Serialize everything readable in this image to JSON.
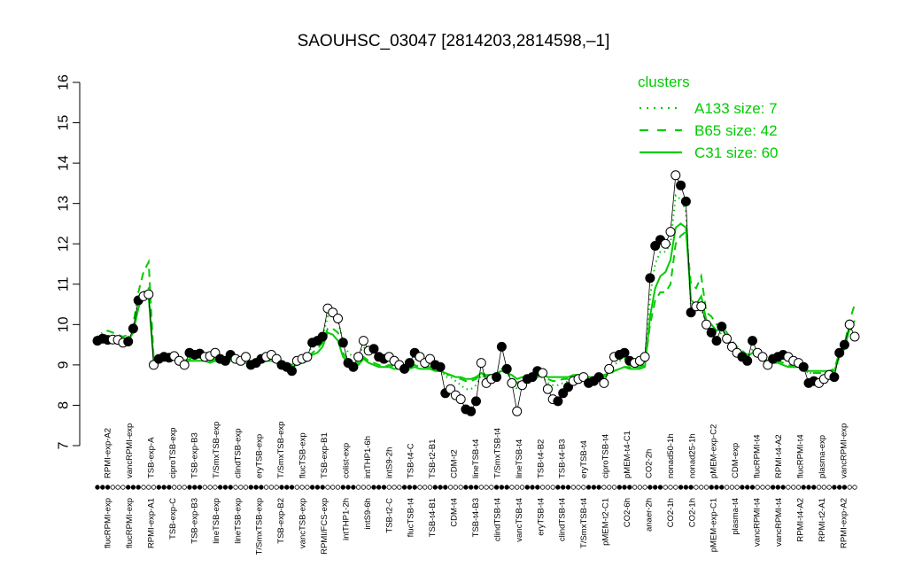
{
  "chart_data": {
    "type": "line",
    "title": "SAOUHSC_03047 [2814203,2814598,–1]",
    "xlabel": "",
    "ylabel": "",
    "ylim": [
      7,
      16
    ],
    "yticks": [
      7,
      8,
      9,
      10,
      11,
      12,
      13,
      14,
      15,
      16
    ],
    "grid": false,
    "legend": {
      "title": "clusters",
      "placement": "top-right",
      "entries": [
        {
          "label": "A133 size: 7",
          "style": "dotted"
        },
        {
          "label": "B65 size: 42",
          "style": "dashed"
        },
        {
          "label": "C31 size: 60",
          "style": "solid"
        }
      ]
    },
    "top_labels": [
      "RPMI-exp-A2",
      "vancRPMI-exp",
      "TSB-exp-A",
      "ciproTSB-exp",
      "TSB-exp-B3",
      "T/SmxTSB-exp",
      "clindTSB-exp",
      "eryTSB-exp",
      "T/SmxTSB-exp",
      "flucTSB-exp",
      "TSB-exp-B1",
      "colist-exp",
      "intTHP1-6h",
      "intS9-2h",
      "TSB-t4-C",
      "TSB-t2-B1",
      "CDM-t2",
      "lineTSB-t4",
      "T/SmxTSB-t4",
      "lineTSB-t4",
      "TSB-t4-B2",
      "TSB-t4-B3",
      "eryTSB-t4",
      "ciproTSB-t4",
      "pMEM-t4-C1",
      "CO2-2h",
      "nonad50-1h",
      "nonad25-1h",
      "pMEM-exp-C2",
      "CDM-exp",
      "flucRPMI-t4",
      "RPMI-t4-A2",
      "flucRPMI-t4",
      "plasma-exp",
      "vancRPMI-exp"
    ],
    "bottom_labels": [
      "flucRPMI-exp",
      "flucRPMI-exp",
      "RPMI-exp-A1",
      "TSB-exp-C",
      "TSB-exp-B3",
      "lineTSB-exp",
      "lineTSB-exp",
      "T/SmxTSB-exp",
      "TSB-exp-B2",
      "vancTSB-exp",
      "RPMI/FCS-exp",
      "intTHP1-2h",
      "intS9-6h",
      "TSB-t2-C",
      "flucTSB-t4",
      "TSB-t4-B1",
      "CDM-t4",
      "TSB-t4-B3",
      "clindTSB-t4",
      "vancTSB-t4",
      "eryTSB-t4",
      "clindTSB-t4",
      "T/SmxTSB-t4",
      "pMEM-t2-C1",
      "CO2-6h",
      "anaer-2h",
      "CO2-1h",
      "CO2-1h",
      "pMEM-exp-C1",
      "plasma-t4",
      "vancRPMI-t4",
      "vancRPMI-t4",
      "RPMI-t4-A2",
      "RPMI-t2-A1",
      "RPMI-exp-A2"
    ],
    "x": [
      1,
      2,
      3,
      4,
      5,
      6,
      7,
      8,
      9,
      10,
      11,
      12,
      13,
      14,
      15,
      16,
      17,
      18,
      19,
      20,
      21,
      22,
      23,
      24,
      25,
      26,
      27,
      28,
      29,
      30,
      31,
      32,
      33,
      34,
      35,
      36,
      37,
      38,
      39,
      40,
      41,
      42,
      43,
      44,
      45,
      46,
      47,
      48,
      49,
      50,
      51,
      52,
      53,
      54,
      55,
      56,
      57,
      58,
      59,
      60,
      61,
      62,
      63,
      64,
      65,
      66,
      67,
      68,
      69,
      70,
      71,
      72,
      73,
      74,
      75,
      76,
      77,
      78,
      79,
      80,
      81,
      82,
      83,
      84,
      85,
      86,
      87,
      88,
      89,
      90,
      91,
      92,
      93,
      94,
      95,
      96,
      97,
      98,
      99,
      100,
      101,
      102,
      103,
      104,
      105,
      106,
      107,
      108,
      109,
      110,
      111,
      112,
      113,
      114,
      115,
      116,
      117,
      118,
      119,
      120,
      121,
      122,
      123,
      124,
      125,
      126,
      127,
      128,
      129,
      130,
      131,
      132,
      133,
      134,
      135,
      136,
      137,
      138,
      139,
      140,
      141,
      142,
      143,
      144,
      145,
      146,
      147,
      148,
      149
    ],
    "points": [
      9.6,
      9.65,
      9.62,
      9.63,
      9.62,
      9.55,
      9.58,
      9.9,
      10.6,
      10.7,
      10.75,
      9.0,
      9.15,
      9.2,
      9.18,
      9.22,
      9.1,
      9.0,
      9.3,
      9.25,
      9.28,
      9.2,
      9.22,
      9.3,
      9.15,
      9.1,
      9.25,
      9.15,
      9.1,
      9.2,
      9.0,
      9.05,
      9.15,
      9.2,
      9.25,
      9.15,
      9.0,
      8.95,
      8.85,
      9.1,
      9.15,
      9.2,
      9.55,
      9.6,
      9.7,
      10.4,
      10.3,
      10.15,
      9.55,
      9.05,
      8.95,
      9.2,
      9.6,
      9.35,
      9.4,
      9.2,
      9.15,
      9.2,
      9.1,
      9.0,
      8.9,
      9.05,
      9.3,
      9.2,
      9.05,
      9.15,
      9.0,
      8.95,
      8.3,
      8.4,
      8.25,
      8.15,
      7.9,
      7.85,
      8.1,
      9.05,
      8.55,
      8.65,
      8.7,
      9.45,
      8.9,
      8.55,
      7.85,
      8.5,
      8.65,
      8.7,
      8.85,
      8.8,
      8.4,
      8.15,
      8.1,
      8.3,
      8.45,
      8.6,
      8.65,
      8.7,
      8.55,
      8.6,
      8.7,
      8.55,
      8.9,
      9.2,
      9.25,
      9.3,
      9.1,
      9.05,
      9.1,
      9.2,
      11.15,
      11.95,
      12.1,
      12.0,
      12.3,
      13.7,
      13.45,
      13.05,
      10.3,
      10.45,
      10.45,
      10.0,
      9.8,
      9.6,
      9.95,
      9.65,
      9.45,
      9.3,
      9.2,
      9.1,
      9.6,
      9.3,
      9.2,
      9.0,
      9.15,
      9.2,
      9.25,
      9.2,
      9.1,
      9.05,
      8.95,
      8.55,
      8.6,
      8.55,
      8.65,
      8.75,
      8.7,
      9.3,
      9.5,
      10.0,
      9.7
    ],
    "series": [
      {
        "name": "A133 size: 7",
        "style": "dotted",
        "values": [
          9.7,
          9.8,
          9.7,
          9.7,
          9.7,
          9.65,
          9.7,
          9.9,
          10.6,
          10.8,
          10.9,
          9.1,
          9.15,
          9.2,
          9.15,
          9.2,
          9.15,
          9.1,
          9.25,
          9.25,
          9.25,
          9.2,
          9.2,
          9.25,
          9.2,
          9.15,
          9.2,
          9.15,
          9.15,
          9.2,
          9.1,
          9.1,
          9.15,
          9.2,
          9.2,
          9.15,
          9.1,
          9.05,
          9.0,
          9.1,
          9.15,
          9.2,
          9.5,
          9.6,
          9.7,
          10.2,
          10.2,
          10.1,
          9.6,
          9.3,
          9.2,
          9.25,
          9.45,
          9.3,
          9.3,
          9.2,
          9.15,
          9.15,
          9.1,
          9.05,
          9.0,
          9.05,
          9.15,
          9.1,
          9.05,
          9.05,
          9.0,
          8.95,
          8.7,
          8.7,
          8.6,
          8.5,
          8.4,
          8.4,
          8.5,
          8.75,
          8.65,
          8.65,
          8.7,
          8.9,
          8.8,
          8.6,
          8.4,
          8.55,
          8.6,
          8.65,
          8.7,
          8.7,
          8.55,
          8.5,
          8.5,
          8.55,
          8.6,
          8.6,
          8.65,
          8.65,
          8.6,
          8.6,
          8.65,
          8.65,
          8.8,
          9.0,
          9.1,
          9.15,
          9.1,
          9.05,
          9.05,
          9.1,
          10.7,
          11.5,
          11.8,
          11.8,
          12.0,
          13.2,
          13.1,
          12.8,
          10.4,
          10.4,
          10.4,
          10.0,
          9.9,
          9.7,
          9.8,
          9.6,
          9.45,
          9.35,
          9.25,
          9.15,
          9.4,
          9.25,
          9.2,
          9.1,
          9.15,
          9.15,
          9.15,
          9.1,
          9.05,
          9.0,
          8.95,
          8.8,
          8.8,
          8.8,
          8.8,
          8.8,
          8.8,
          9.2,
          9.4,
          9.9,
          9.8
        ]
      },
      {
        "name": "B65 size: 42",
        "style": "dashed",
        "values": [
          9.6,
          9.75,
          9.85,
          9.8,
          9.75,
          9.7,
          9.75,
          10.0,
          10.8,
          11.3,
          11.55,
          9.2,
          9.2,
          9.2,
          9.15,
          9.2,
          9.15,
          9.1,
          9.15,
          9.15,
          9.2,
          9.15,
          9.1,
          9.15,
          9.1,
          9.1,
          9.15,
          9.15,
          9.1,
          9.1,
          9.05,
          9.1,
          9.1,
          9.15,
          9.15,
          9.1,
          9.05,
          9.05,
          9.0,
          9.05,
          9.1,
          9.15,
          9.3,
          9.4,
          9.55,
          9.9,
          9.9,
          9.8,
          9.3,
          9.1,
          9.05,
          9.05,
          9.2,
          9.1,
          9.05,
          9.0,
          8.95,
          9.0,
          8.95,
          8.95,
          8.9,
          8.95,
          9.0,
          8.95,
          8.95,
          8.95,
          8.9,
          8.9,
          8.75,
          8.75,
          8.7,
          8.65,
          8.6,
          8.6,
          8.65,
          8.8,
          8.7,
          8.75,
          8.75,
          8.9,
          8.8,
          8.7,
          8.55,
          8.65,
          8.65,
          8.7,
          8.7,
          8.75,
          8.65,
          8.6,
          8.6,
          8.65,
          8.65,
          8.7,
          8.7,
          8.7,
          8.65,
          8.65,
          8.7,
          8.7,
          8.75,
          8.85,
          8.9,
          8.95,
          8.95,
          8.95,
          8.95,
          9.0,
          10.0,
          10.6,
          10.8,
          10.8,
          11.0,
          12.0,
          12.2,
          12.3,
          11.0,
          10.9,
          11.2,
          10.3,
          10.2,
          10.0,
          10.0,
          9.8,
          9.6,
          9.45,
          9.35,
          9.25,
          9.35,
          9.25,
          9.15,
          9.1,
          9.1,
          9.1,
          9.05,
          9.0,
          8.95,
          8.95,
          8.9,
          8.8,
          8.8,
          8.8,
          8.8,
          8.85,
          8.9,
          9.3,
          9.5,
          10.1,
          10.5
        ]
      },
      {
        "name": "C31 size: 60",
        "style": "solid",
        "values": [
          9.5,
          9.6,
          9.6,
          9.6,
          9.6,
          9.55,
          9.6,
          9.8,
          10.4,
          10.8,
          10.7,
          9.1,
          9.1,
          9.15,
          9.1,
          9.15,
          9.1,
          9.05,
          9.1,
          9.1,
          9.1,
          9.1,
          9.05,
          9.1,
          9.05,
          9.05,
          9.1,
          9.1,
          9.05,
          9.05,
          9.0,
          9.05,
          9.05,
          9.1,
          9.1,
          9.05,
          9.0,
          9.0,
          8.95,
          9.0,
          9.05,
          9.1,
          9.25,
          9.3,
          9.45,
          9.8,
          9.75,
          9.6,
          9.2,
          9.05,
          9.0,
          9.0,
          9.15,
          9.05,
          9.0,
          8.95,
          8.95,
          8.95,
          8.9,
          8.9,
          8.9,
          8.9,
          8.95,
          8.9,
          8.9,
          8.9,
          8.85,
          8.85,
          8.8,
          8.75,
          8.7,
          8.7,
          8.65,
          8.65,
          8.7,
          8.8,
          8.75,
          8.75,
          8.8,
          8.85,
          8.8,
          8.75,
          8.65,
          8.7,
          8.7,
          8.75,
          8.75,
          8.75,
          8.7,
          8.7,
          8.7,
          8.7,
          8.7,
          8.75,
          8.75,
          8.75,
          8.7,
          8.7,
          8.75,
          8.75,
          8.8,
          8.85,
          8.9,
          8.95,
          8.9,
          8.9,
          8.9,
          8.95,
          10.2,
          10.9,
          11.2,
          11.3,
          11.6,
          12.4,
          12.5,
          12.4,
          10.6,
          10.5,
          10.7,
          10.1,
          10.0,
          9.85,
          9.9,
          9.7,
          9.5,
          9.4,
          9.3,
          9.2,
          9.3,
          9.2,
          9.15,
          9.05,
          9.05,
          9.05,
          9.0,
          8.95,
          8.95,
          8.95,
          8.9,
          8.85,
          8.85,
          8.85,
          8.85,
          8.85,
          8.85,
          9.2,
          9.4,
          9.9,
          10.1
        ]
      }
    ],
    "colors": {
      "clusters": "#00cc00",
      "axis": "#000000",
      "points_filled": "#000000",
      "points_open": "#ffffff"
    }
  }
}
